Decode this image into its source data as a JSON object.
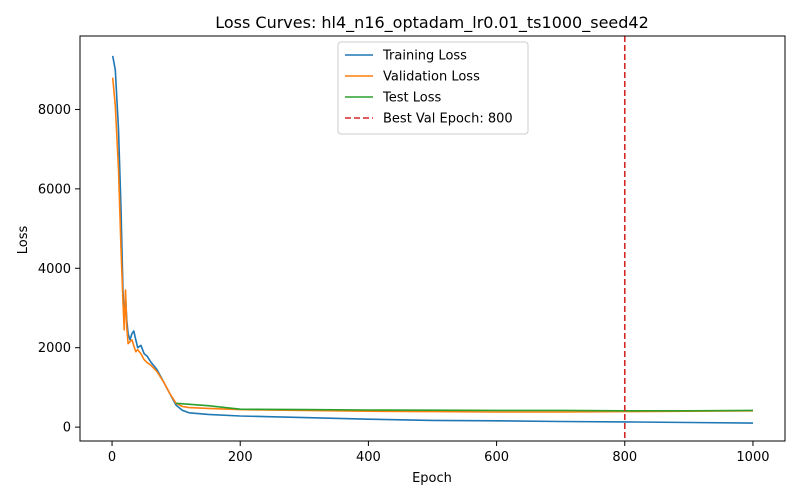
{
  "chart_data": {
    "type": "line",
    "title": "Loss Curves: hl4_n16_optadam_lr0.01_ts1000_seed42",
    "xlabel": "Epoch",
    "ylabel": "Loss",
    "xlim": [
      -50,
      1050
    ],
    "ylim": [
      -350,
      9850
    ],
    "xticks": [
      0,
      200,
      400,
      600,
      800,
      1000
    ],
    "yticks": [
      0,
      2000,
      4000,
      6000,
      8000
    ],
    "grid": false,
    "legend_position": "top-center",
    "series": [
      {
        "name": "Training Loss",
        "color": "#1f77b4",
        "points": [
          [
            1,
            9350
          ],
          [
            5,
            9000
          ],
          [
            10,
            7500
          ],
          [
            14,
            5500
          ],
          [
            17,
            3500
          ],
          [
            19,
            2700
          ],
          [
            21,
            3300
          ],
          [
            23,
            2700
          ],
          [
            25,
            2350
          ],
          [
            28,
            2200
          ],
          [
            31,
            2350
          ],
          [
            34,
            2420
          ],
          [
            37,
            2200
          ],
          [
            40,
            2000
          ],
          [
            45,
            2060
          ],
          [
            50,
            1850
          ],
          [
            55,
            1780
          ],
          [
            60,
            1650
          ],
          [
            70,
            1450
          ],
          [
            80,
            1150
          ],
          [
            90,
            850
          ],
          [
            100,
            550
          ],
          [
            110,
            420
          ],
          [
            120,
            360
          ],
          [
            150,
            320
          ],
          [
            200,
            280
          ],
          [
            300,
            240
          ],
          [
            400,
            200
          ],
          [
            500,
            170
          ],
          [
            600,
            160
          ],
          [
            700,
            140
          ],
          [
            800,
            130
          ],
          [
            900,
            115
          ],
          [
            1000,
            100
          ]
        ]
      },
      {
        "name": "Validation Loss",
        "color": "#ff7f0e",
        "points": [
          [
            1,
            8800
          ],
          [
            5,
            8100
          ],
          [
            10,
            6500
          ],
          [
            14,
            4500
          ],
          [
            17,
            3200
          ],
          [
            19,
            2450
          ],
          [
            21,
            3450
          ],
          [
            23,
            2500
          ],
          [
            25,
            2100
          ],
          [
            28,
            2150
          ],
          [
            31,
            2200
          ],
          [
            34,
            2050
          ],
          [
            37,
            1900
          ],
          [
            40,
            1950
          ],
          [
            45,
            1850
          ],
          [
            50,
            1700
          ],
          [
            55,
            1620
          ],
          [
            60,
            1570
          ],
          [
            70,
            1400
          ],
          [
            80,
            1150
          ],
          [
            90,
            850
          ],
          [
            100,
            600
          ],
          [
            110,
            520
          ],
          [
            120,
            490
          ],
          [
            150,
            470
          ],
          [
            200,
            440
          ],
          [
            300,
            420
          ],
          [
            400,
            400
          ],
          [
            500,
            390
          ],
          [
            600,
            380
          ],
          [
            700,
            380
          ],
          [
            800,
            390
          ],
          [
            900,
            400
          ],
          [
            1000,
            410
          ]
        ]
      },
      {
        "name": "Test Loss",
        "color": "#2ca02c",
        "points": [
          [
            100,
            600
          ],
          [
            150,
            540
          ],
          [
            200,
            450
          ],
          [
            300,
            440
          ],
          [
            400,
            430
          ],
          [
            500,
            425
          ],
          [
            600,
            420
          ],
          [
            700,
            420
          ],
          [
            800,
            410
          ],
          [
            900,
            410
          ],
          [
            1000,
            420
          ]
        ]
      }
    ],
    "reference_lines": [
      {
        "name": "Best Val Epoch: 800",
        "orientation": "vertical",
        "x": 800,
        "color": "#d62728",
        "style": "dashed"
      }
    ]
  }
}
